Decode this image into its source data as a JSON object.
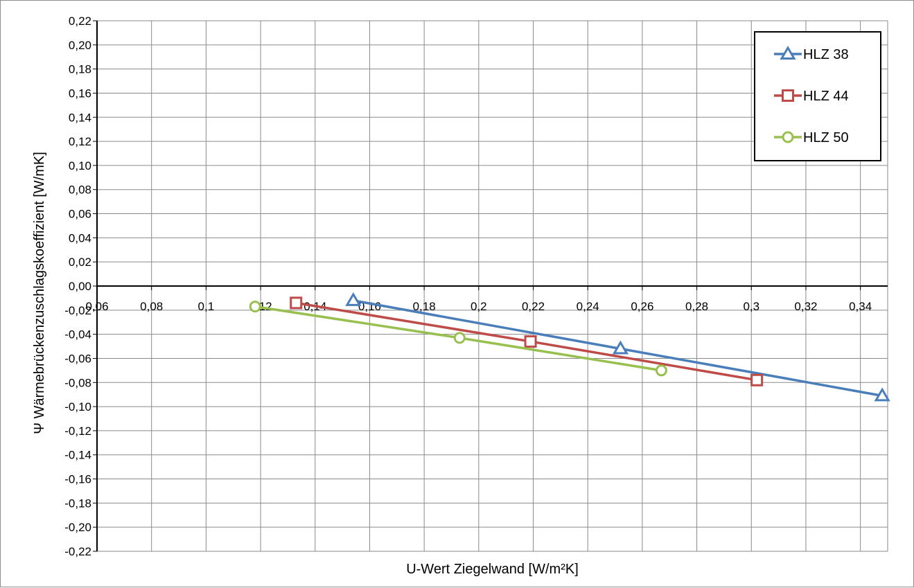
{
  "chart_data": {
    "type": "line",
    "title": "",
    "xlabel": "U-Wert Ziegelwand [W/m²K]",
    "ylabel": "Ψ  Wärmebrückenzuschlagskoeffizient  [W/mK]",
    "xlim": [
      0.06,
      0.35
    ],
    "ylim": [
      -0.22,
      0.22
    ],
    "x_ticks": [
      "0,06",
      "0,08",
      "0,1",
      "0,12",
      "0,14",
      "0,16",
      "0,18",
      "0,2",
      "0,22",
      "0,24",
      "0,26",
      "0,28",
      "0,3",
      "0,32",
      "0,34"
    ],
    "y_ticks": [
      "0,22",
      "0,20",
      "0,18",
      "0,16",
      "0,14",
      "0,12",
      "0,10",
      "0,08",
      "0,06",
      "0,04",
      "0,02",
      "0,00",
      "-0,02",
      "-0,04",
      "-0,06",
      "-0,08",
      "-0,10",
      "-0,12",
      "-0,14",
      "-0,16",
      "-0,18",
      "-0,20",
      "-0,22"
    ],
    "grid": true,
    "legend_position": "top-right",
    "series": [
      {
        "name": "HLZ 38",
        "marker": "triangle",
        "color": "#4a7ebb",
        "points": [
          [
            0.154,
            -0.012
          ],
          [
            0.252,
            -0.052
          ],
          [
            0.348,
            -0.091
          ]
        ]
      },
      {
        "name": "HLZ 44",
        "marker": "square",
        "color": "#be4b48",
        "points": [
          [
            0.133,
            -0.014
          ],
          [
            0.219,
            -0.046
          ],
          [
            0.302,
            -0.078
          ]
        ]
      },
      {
        "name": "HLZ 50",
        "marker": "circle",
        "color": "#98c04f",
        "points": [
          [
            0.118,
            -0.017
          ],
          [
            0.193,
            -0.043
          ],
          [
            0.267,
            -0.07
          ]
        ]
      }
    ]
  }
}
